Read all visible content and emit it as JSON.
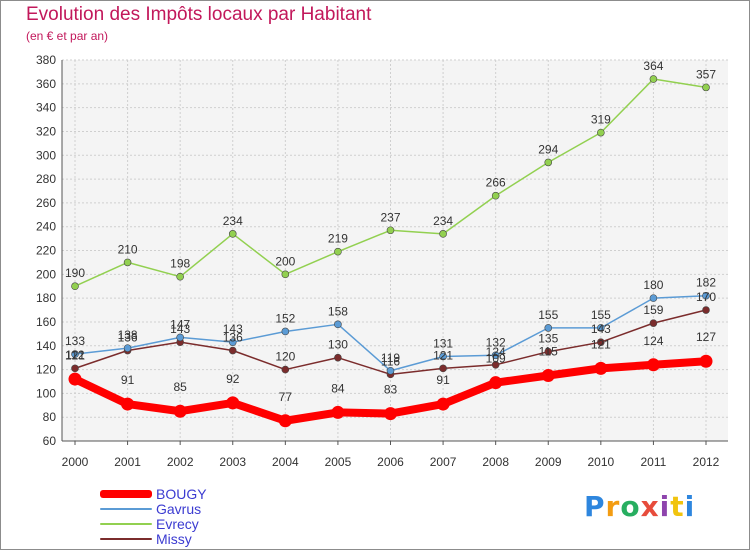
{
  "chart_data": {
    "type": "line",
    "title": "Evolution des Impôts locaux par Habitant",
    "subtitle": "(en € et par an)",
    "x": [
      "2000",
      "2001",
      "2002",
      "2003",
      "2004",
      "2005",
      "2006",
      "2007",
      "2008",
      "2009",
      "2010",
      "2011",
      "2012"
    ],
    "yticks": [
      60,
      80,
      100,
      120,
      140,
      160,
      180,
      200,
      220,
      240,
      260,
      280,
      300,
      320,
      340,
      360,
      380
    ],
    "ylim": [
      60,
      380
    ],
    "grid": true,
    "legend_position": "bottom-left",
    "series": [
      {
        "name": "BOUGY",
        "color": "#ff0000",
        "values": [
          112,
          91,
          85,
          92,
          77,
          84,
          83,
          91,
          109,
          115,
          121,
          124,
          127
        ]
      },
      {
        "name": "Gavrus",
        "color": "#5b9bd5",
        "values": [
          133,
          138,
          147,
          143,
          152,
          158,
          119,
          131,
          132,
          155,
          155,
          180,
          182
        ]
      },
      {
        "name": "Evrecy",
        "color": "#92d050",
        "values": [
          190,
          210,
          198,
          234,
          200,
          219,
          237,
          234,
          266,
          294,
          319,
          364,
          357
        ]
      },
      {
        "name": "Missy",
        "color": "#7b2c2c",
        "values": [
          121,
          136,
          143,
          136,
          120,
          130,
          116,
          121,
          124,
          135,
          143,
          159,
          170
        ]
      }
    ]
  },
  "brand": {
    "text": "Proxiti"
  }
}
